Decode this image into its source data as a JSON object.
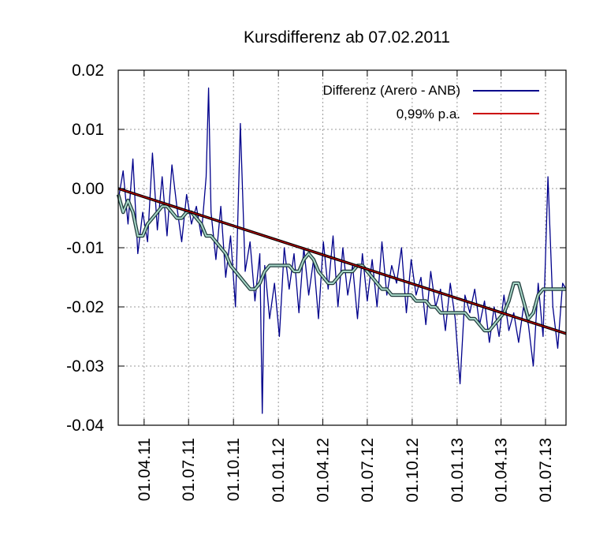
{
  "chart_data": {
    "type": "line",
    "title": "Kursdifferenz ab 07.02.2011",
    "xlabel": "",
    "ylabel": "",
    "xlim_days": [
      0,
      917
    ],
    "ylim": [
      -0.04,
      0.02
    ],
    "grid": true,
    "legend_position": "top-right",
    "y_ticks": [
      {
        "value": 0.02,
        "label": "0.02"
      },
      {
        "value": 0.01,
        "label": "0.01"
      },
      {
        "value": 0.0,
        "label": "0.00"
      },
      {
        "value": -0.01,
        "label": "-0.01"
      },
      {
        "value": -0.02,
        "label": "-0.02"
      },
      {
        "value": -0.03,
        "label": "-0.03"
      },
      {
        "value": -0.04,
        "label": "-0.04"
      }
    ],
    "x_ticks": [
      {
        "day": 53,
        "label": "01.04.11"
      },
      {
        "day": 144,
        "label": "01.07.11"
      },
      {
        "day": 236,
        "label": "01.10.11"
      },
      {
        "day": 328,
        "label": "01.01.12"
      },
      {
        "day": 419,
        "label": "01.04.12"
      },
      {
        "day": 510,
        "label": "01.07.12"
      },
      {
        "day": 602,
        "label": "01.10.12"
      },
      {
        "day": 694,
        "label": "01.01.13"
      },
      {
        "day": 784,
        "label": "01.04.13"
      },
      {
        "day": 875,
        "label": "01.07.13"
      }
    ],
    "series": [
      {
        "name": "Differenz (Arero - ANB)",
        "color": "#00008b",
        "x": [
          0,
          10,
          20,
          30,
          40,
          50,
          60,
          70,
          80,
          90,
          100,
          110,
          120,
          130,
          140,
          150,
          160,
          170,
          180,
          185,
          190,
          200,
          210,
          220,
          230,
          240,
          250,
          260,
          270,
          280,
          290,
          295,
          300,
          310,
          320,
          330,
          340,
          350,
          360,
          370,
          380,
          390,
          400,
          410,
          420,
          430,
          440,
          450,
          460,
          470,
          480,
          490,
          500,
          510,
          520,
          530,
          540,
          550,
          560,
          570,
          580,
          590,
          600,
          610,
          620,
          630,
          640,
          650,
          660,
          670,
          680,
          690,
          700,
          710,
          720,
          730,
          740,
          750,
          760,
          770,
          780,
          790,
          800,
          810,
          820,
          830,
          840,
          850,
          860,
          870,
          880,
          890,
          900,
          910,
          917
        ],
        "values": [
          -0.002,
          0.003,
          -0.006,
          0.005,
          -0.011,
          -0.004,
          -0.009,
          0.006,
          -0.007,
          0.002,
          -0.008,
          0.004,
          -0.003,
          -0.009,
          -0.001,
          -0.006,
          -0.003,
          -0.008,
          0.002,
          0.017,
          -0.004,
          -0.012,
          -0.003,
          -0.015,
          -0.008,
          -0.02,
          0.011,
          -0.014,
          -0.009,
          -0.019,
          -0.011,
          -0.038,
          -0.013,
          -0.022,
          -0.016,
          -0.025,
          -0.01,
          -0.017,
          -0.011,
          -0.021,
          -0.01,
          -0.018,
          -0.012,
          -0.022,
          -0.009,
          -0.017,
          -0.008,
          -0.02,
          -0.01,
          -0.018,
          -0.013,
          -0.022,
          -0.011,
          -0.019,
          -0.012,
          -0.02,
          -0.009,
          -0.018,
          -0.013,
          -0.016,
          -0.01,
          -0.021,
          -0.012,
          -0.018,
          -0.015,
          -0.023,
          -0.014,
          -0.02,
          -0.017,
          -0.024,
          -0.016,
          -0.022,
          -0.033,
          -0.018,
          -0.021,
          -0.017,
          -0.023,
          -0.019,
          -0.026,
          -0.02,
          -0.025,
          -0.018,
          -0.024,
          -0.021,
          -0.026,
          -0.02,
          -0.023,
          -0.03,
          -0.016,
          -0.025,
          0.002,
          -0.02,
          -0.027,
          -0.016,
          -0.017
        ]
      },
      {
        "name": "0,99% p.a.",
        "color": "#cc0000",
        "x": [
          0,
          917
        ],
        "values": [
          0.0,
          -0.0245
        ]
      },
      {
        "name": "",
        "color": "#a8d8c8",
        "x": [
          0,
          10,
          20,
          30,
          40,
          50,
          60,
          70,
          80,
          90,
          100,
          110,
          120,
          130,
          140,
          150,
          160,
          170,
          180,
          190,
          200,
          210,
          220,
          230,
          240,
          250,
          260,
          270,
          280,
          290,
          300,
          310,
          320,
          330,
          340,
          350,
          360,
          370,
          380,
          390,
          400,
          410,
          420,
          430,
          440,
          450,
          460,
          470,
          480,
          490,
          500,
          510,
          520,
          530,
          540,
          550,
          560,
          570,
          580,
          590,
          600,
          610,
          620,
          630,
          640,
          650,
          660,
          670,
          680,
          690,
          700,
          710,
          720,
          730,
          740,
          750,
          760,
          770,
          780,
          790,
          800,
          810,
          820,
          830,
          840,
          850,
          860,
          870,
          880,
          890,
          900,
          910,
          917
        ],
        "values": [
          -0.001,
          -0.004,
          -0.002,
          -0.004,
          -0.008,
          -0.008,
          -0.006,
          -0.005,
          -0.004,
          -0.003,
          -0.003,
          -0.004,
          -0.005,
          -0.005,
          -0.004,
          -0.004,
          -0.005,
          -0.006,
          -0.008,
          -0.008,
          -0.009,
          -0.01,
          -0.011,
          -0.013,
          -0.014,
          -0.015,
          -0.016,
          -0.017,
          -0.017,
          -0.016,
          -0.014,
          -0.013,
          -0.013,
          -0.013,
          -0.013,
          -0.013,
          -0.014,
          -0.014,
          -0.012,
          -0.011,
          -0.012,
          -0.014,
          -0.015,
          -0.016,
          -0.016,
          -0.015,
          -0.014,
          -0.014,
          -0.014,
          -0.013,
          -0.013,
          -0.014,
          -0.015,
          -0.016,
          -0.017,
          -0.017,
          -0.018,
          -0.018,
          -0.018,
          -0.018,
          -0.018,
          -0.019,
          -0.019,
          -0.019,
          -0.02,
          -0.02,
          -0.021,
          -0.021,
          -0.021,
          -0.021,
          -0.021,
          -0.021,
          -0.022,
          -0.022,
          -0.023,
          -0.024,
          -0.024,
          -0.023,
          -0.022,
          -0.021,
          -0.019,
          -0.016,
          -0.016,
          -0.019,
          -0.022,
          -0.021,
          -0.018,
          -0.017,
          -0.017,
          -0.017,
          -0.017,
          -0.017,
          -0.017
        ]
      }
    ]
  }
}
